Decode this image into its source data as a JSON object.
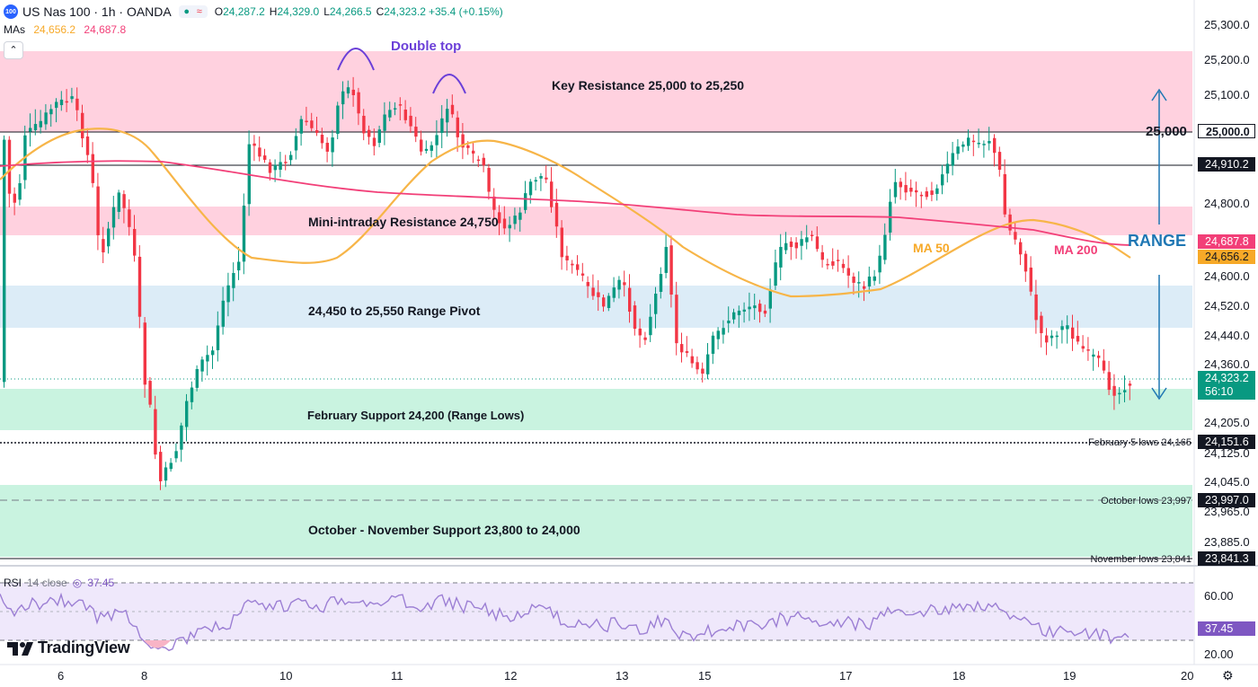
{
  "header": {
    "symbol_badge": "100",
    "title": "US Nas 100 · 1h · OANDA",
    "open_label": "O",
    "open": "24,287.2",
    "high_label": "H",
    "high": "24,329.0",
    "low_label": "L",
    "low": "24,266.5",
    "close_label": "C",
    "close": "24,323.2",
    "change": "+35.4 (+0.15%)"
  },
  "mas": {
    "label": "MAs",
    "ma50_value": "24,656.2",
    "ma200_value": "24,687.8"
  },
  "zones": {
    "key_resistance": "Key Resistance 25,000 to 25,250",
    "mini_resistance": "Mini-intraday Resistance 24,750",
    "range_pivot": "24,450 to 25,550 Range Pivot",
    "feb_support": "February Support 24,200 (Range Lows)",
    "oct_nov_support": "October - November Support 23,800 to 24,000"
  },
  "annotations": {
    "double_top": "Double top",
    "level_25000": "25,000",
    "range": "RANGE",
    "ma50": "MA 50",
    "ma200": "MA 200",
    "feb5_lows": "February 5 lows 24,165",
    "oct_lows": "October lows 23,997",
    "nov_lows": "November lows 23,841"
  },
  "price_axis": {
    "ticks": [
      "25,300.0",
      "25,200.0",
      "25,100.0",
      "24,800.0",
      "24,600.0",
      "24,520.0",
      "24,440.0",
      "24,360.0",
      "24,205.0",
      "24,125.0",
      "24,045.0",
      "23,965.0",
      "23,885.0"
    ],
    "tags": {
      "p25000": "25,000.0",
      "p24910": "24,910.2",
      "ma200": "24,687.8",
      "ma50": "24,656.2",
      "last_price": "24,323.2",
      "countdown": "56:10",
      "p24151": "24,151.6",
      "p23997": "23,997.0",
      "p23841": "23,841.3"
    }
  },
  "time_axis": {
    "ticks": [
      "6",
      "8",
      "10",
      "11",
      "12",
      "13",
      "15",
      "17",
      "18",
      "19",
      "20"
    ]
  },
  "rsi": {
    "label": "RSI",
    "params": "14 close",
    "value": "37.45",
    "ticks": [
      "60.00",
      "20.00"
    ]
  },
  "branding": {
    "logo_text": "TradingView"
  },
  "colors": {
    "up": "#089981",
    "down": "#f23645",
    "ma50": "#f7b548",
    "ma200": "#f23f78",
    "resistance_zone": "#ffd1df",
    "pivot_zone": "#dcecf7",
    "support_zone": "#c9f3e0",
    "range_arrow": "#1f77b4",
    "rsi_line": "#9c7fd4",
    "rsi_fill": "#efe8fb"
  },
  "icons": [
    "symbol-badge",
    "chevron-up-icon",
    "rsi-eye-icon",
    "tradingview-logo",
    "settings-gear-icon"
  ]
}
